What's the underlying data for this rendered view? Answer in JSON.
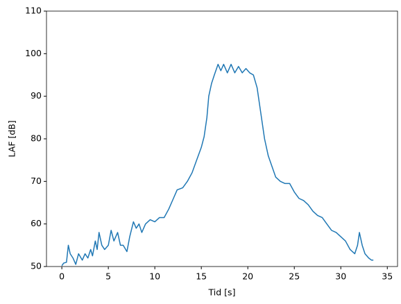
{
  "chart_data": {
    "type": "line",
    "xlabel": "Tid [s]",
    "ylabel": "LAF [dB]",
    "x": [
      0,
      0.2,
      0.5,
      0.7,
      0.9,
      1.2,
      1.5,
      1.8,
      2.2,
      2.5,
      2.8,
      3.1,
      3.3,
      3.6,
      3.8,
      4.0,
      4.3,
      4.6,
      5.0,
      5.3,
      5.6,
      6.0,
      6.3,
      6.6,
      7.0,
      7.3,
      7.7,
      8.0,
      8.3,
      8.6,
      9.0,
      9.5,
      10,
      10.5,
      11,
      11.5,
      12,
      12.4,
      13,
      13.5,
      14,
      14.5,
      15,
      15.3,
      15.6,
      15.8,
      16.1,
      16.4,
      16.8,
      17.1,
      17.4,
      17.8,
      18.2,
      18.6,
      19,
      19.4,
      19.8,
      20.2,
      20.6,
      21,
      21.4,
      21.8,
      22.2,
      22.6,
      23,
      23.5,
      24,
      24.5,
      25,
      25.5,
      26,
      26.5,
      27,
      27.5,
      28,
      28.5,
      29,
      29.5,
      30,
      30.5,
      31,
      31.5,
      31.8,
      32,
      32.3,
      32.6,
      33,
      33.3,
      33.5
    ],
    "series": [
      {
        "name": "LAF",
        "color": "#1f77b4",
        "values": [
          50.2,
          50.8,
          51,
          55,
          53,
          52,
          50.5,
          53,
          51.5,
          53,
          52,
          54,
          52.5,
          56,
          54,
          58,
          55,
          54,
          55,
          58.5,
          56,
          58,
          55,
          55,
          53.5,
          57,
          60.5,
          59,
          60,
          58,
          60,
          61,
          60.5,
          61.5,
          61.5,
          63.5,
          66,
          68,
          68.5,
          70,
          72,
          75,
          78,
          80.5,
          85,
          90,
          93,
          95,
          97.5,
          96,
          97.5,
          95.5,
          97.5,
          95.5,
          97,
          95.5,
          96.5,
          95.5,
          95,
          92,
          86,
          80,
          76,
          73.5,
          71,
          70,
          69.5,
          69.5,
          67.5,
          66,
          65.5,
          64.5,
          63,
          62,
          61.5,
          60,
          58.5,
          58,
          57,
          56,
          54,
          53,
          55,
          58,
          55,
          53,
          52,
          51.5,
          51.5
        ]
      }
    ],
    "xlim": [
      -1.65,
      36.1
    ],
    "ylim": [
      50,
      110
    ],
    "xticks": [
      0,
      5,
      10,
      15,
      20,
      25,
      30,
      35
    ],
    "yticks": [
      50,
      60,
      70,
      80,
      90,
      100,
      110
    ],
    "grid": false
  }
}
